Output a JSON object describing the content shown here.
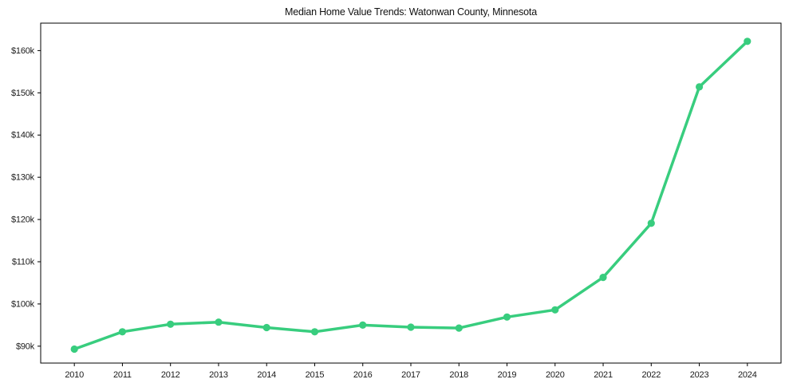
{
  "title": "Median Home Value Trends: Watonwan County, Minnesota",
  "chart_data": {
    "type": "line",
    "title": "Median Home Value Trends: Watonwan County, Minnesota",
    "xlabel": "",
    "ylabel": "",
    "series_name": "Median Home Value",
    "x": [
      2010,
      2011,
      2012,
      2013,
      2014,
      2015,
      2016,
      2017,
      2018,
      2019,
      2020,
      2021,
      2022,
      2023,
      2024
    ],
    "values": [
      89300,
      93400,
      95200,
      95700,
      94400,
      93400,
      95000,
      94500,
      94300,
      96900,
      98600,
      106300,
      119100,
      151400,
      162200
    ],
    "xlim": [
      2009.3,
      2024.7
    ],
    "ylim": [
      86000,
      166500
    ],
    "xticks": {
      "values": [
        2010,
        2011,
        2012,
        2013,
        2014,
        2015,
        2016,
        2017,
        2018,
        2019,
        2020,
        2021,
        2022,
        2023,
        2024
      ],
      "labels": [
        "2010",
        "2011",
        "2012",
        "2013",
        "2014",
        "2015",
        "2016",
        "2017",
        "2018",
        "2019",
        "2020",
        "2021",
        "2022",
        "2023",
        "2024"
      ]
    },
    "yticks": {
      "values": [
        90000,
        100000,
        110000,
        120000,
        130000,
        140000,
        150000,
        160000
      ],
      "labels": [
        "$90k",
        "$100k",
        "$110k",
        "$120k",
        "$130k",
        "$140k",
        "$150k",
        "$160k"
      ]
    },
    "grid": false,
    "legend": null,
    "marker": "circle",
    "colors": {
      "line": "#38cd7e",
      "marker": "#38cd7e",
      "spine": "#000000",
      "text": "#1a1a1a",
      "background": "#ffffff"
    }
  }
}
